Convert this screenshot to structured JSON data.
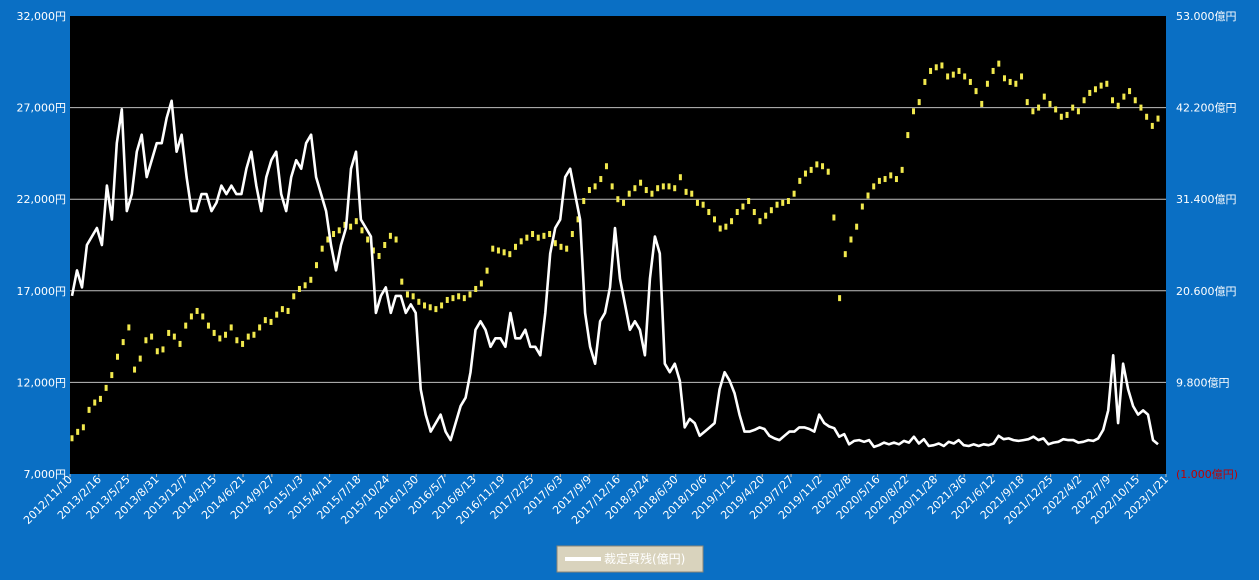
{
  "colors": {
    "background": "#0a6fc4",
    "plot_area": "#000000",
    "gridline": "#bfbfbf",
    "axis_text": "#ffffff",
    "price_series": "#f2e94e",
    "margin_series": "#ffffff",
    "negative_label": "#c00000",
    "legend_bg": "#d9d3bd"
  },
  "chart_data": {
    "type": "line",
    "grid": true,
    "legend_position": "bottom-center",
    "x_tick_labels": [
      "2012/11/10",
      "2013/2/16",
      "2013/5/25",
      "2013/8/31",
      "2013/12/7",
      "2014/3/15",
      "2014/6/21",
      "2014/9/27",
      "2015/1/3",
      "2015/4/11",
      "2015/7/18",
      "2015/10/24",
      "2016/1/30",
      "2016/5/7",
      "2016/8/13",
      "2016/11/19",
      "2017/2/25",
      "2017/6/3",
      "2017/9/9",
      "2017/12/16",
      "2018/3/24",
      "2018/6/30",
      "2018/10/6",
      "2019/1/12",
      "2019/4/20",
      "2019/7/27",
      "2019/11/2",
      "2020/2/8",
      "2020/5/16",
      "2020/8/22",
      "2020/11/28",
      "2021/3/6",
      "2021/6/12",
      "2021/9/18",
      "2021/12/25",
      "2022/4/2",
      "2022/7/9",
      "2022/10/15",
      "2023/1/21"
    ],
    "y_left": {
      "min": 7000,
      "max": 32000,
      "step": 5000,
      "tick_labels": [
        "32,000円",
        "27,000円",
        "22,000円",
        "17,000円",
        "12,000円",
        "7,000円"
      ]
    },
    "y_right": {
      "min": -1000,
      "max": 53000,
      "step": 10800,
      "tick_labels": [
        "53.000億円",
        "42.200億円",
        "31.400億円",
        "20.600億円",
        "9.800億円",
        "(1.000億円)"
      ]
    },
    "series": [
      {
        "name": "",
        "axis": "left",
        "style": "dots",
        "values": [
          8950,
          9300,
          9550,
          10500,
          10900,
          11100,
          11700,
          12400,
          13400,
          14200,
          15000,
          12700,
          13300,
          14300,
          14500,
          13700,
          13800,
          14700,
          14500,
          14100,
          15100,
          15600,
          15900,
          15600,
          15100,
          14700,
          14400,
          14600,
          15000,
          14300,
          14100,
          14500,
          14600,
          15000,
          15400,
          15300,
          15700,
          16000,
          15900,
          16700,
          17100,
          17300,
          17600,
          18400,
          19300,
          19800,
          20100,
          20300,
          20600,
          20500,
          20800,
          20300,
          19800,
          19200,
          18900,
          19500,
          20000,
          19800,
          17500,
          16800,
          16700,
          16400,
          16200,
          16100,
          16000,
          16200,
          16500,
          16600,
          16700,
          16600,
          16800,
          17100,
          17400,
          18100,
          19300,
          19200,
          19100,
          19000,
          19400,
          19700,
          19900,
          20100,
          19900,
          20000,
          20100,
          19600,
          19400,
          19300,
          20100,
          20900,
          21900,
          22500,
          22700,
          23100,
          23800,
          22700,
          22000,
          21800,
          22300,
          22600,
          22900,
          22500,
          22300,
          22600,
          22700,
          22700,
          22600,
          23200,
          22400,
          22300,
          21800,
          21700,
          21300,
          20900,
          20400,
          20500,
          20800,
          21300,
          21600,
          21900,
          21300,
          20800,
          21100,
          21400,
          21700,
          21800,
          21900,
          22300,
          23000,
          23400,
          23600,
          23900,
          23800,
          23500,
          21000,
          16600,
          19000,
          19800,
          20500,
          21600,
          22200,
          22700,
          23000,
          23100,
          23300,
          23100,
          23600,
          25500,
          26800,
          27300,
          28400,
          29000,
          29200,
          29300,
          28700,
          28800,
          29000,
          28700,
          28400,
          27900,
          27200,
          28300,
          29000,
          29400,
          28600,
          28400,
          28300,
          28700,
          27300,
          26800,
          27000,
          27600,
          27200,
          26900,
          26500,
          26600,
          27000,
          26800,
          27400,
          27800,
          28000,
          28200,
          28300,
          27400,
          27100,
          27600,
          27900,
          27400,
          27000,
          26500,
          26000,
          26400
        ]
      },
      {
        "name": "裁定買残(億円)",
        "axis": "right",
        "style": "line",
        "values": [
          20000,
          23000,
          21000,
          26000,
          27000,
          28000,
          26000,
          33000,
          29000,
          38000,
          42000,
          30000,
          32000,
          37000,
          39000,
          34000,
          36000,
          38000,
          38000,
          41000,
          43000,
          37000,
          39000,
          34000,
          30000,
          30000,
          32000,
          32000,
          30000,
          31000,
          33000,
          32000,
          33000,
          32000,
          32000,
          35000,
          37000,
          33000,
          30000,
          34000,
          36000,
          37000,
          32000,
          30000,
          34000,
          36000,
          35000,
          38000,
          39000,
          34000,
          32000,
          30000,
          26000,
          23000,
          26000,
          28000,
          35000,
          37000,
          29000,
          28000,
          27000,
          18000,
          20000,
          21000,
          18000,
          20000,
          20000,
          18000,
          19000,
          18000,
          9000,
          6000,
          4000,
          5000,
          6000,
          4000,
          3000,
          5000,
          7000,
          8000,
          11000,
          16000,
          17000,
          16000,
          14000,
          15000,
          15000,
          14000,
          18000,
          15000,
          15000,
          16000,
          14000,
          14000,
          13000,
          18000,
          25000,
          28000,
          29000,
          34000,
          35000,
          32000,
          29000,
          18000,
          14000,
          12000,
          17000,
          18000,
          21000,
          28000,
          22000,
          19000,
          16000,
          17000,
          16000,
          13000,
          22000,
          27000,
          25000,
          12000,
          11000,
          12000,
          10000,
          4500,
          5500,
          5000,
          3500,
          4000,
          4500,
          5000,
          9000,
          11000,
          10000,
          8500,
          6000,
          4000,
          4000,
          4200,
          4500,
          4300,
          3500,
          3200,
          3000,
          3500,
          4000,
          4000,
          4500,
          4500,
          4300,
          4000,
          6000,
          5000,
          4600,
          4400,
          3400,
          3700,
          2500,
          2900,
          3000,
          2800,
          3000,
          2200,
          2400,
          2700,
          2500,
          2700,
          2500,
          2900,
          2700,
          3400,
          2600,
          3100,
          2300,
          2400,
          2600,
          2300,
          2800,
          2600,
          3000,
          2400,
          2300,
          2500,
          2300,
          2500,
          2400,
          2600,
          3500,
          3100,
          3200,
          3000,
          2900,
          3000,
          3100,
          3400,
          3000,
          3200,
          2500,
          2700,
          2800,
          3100,
          3000,
          3000,
          2700,
          2800,
          3000,
          2900,
          3200,
          4200,
          6500,
          13000,
          5000,
          12000,
          9000,
          7000,
          6000,
          6500,
          6000,
          3000,
          2500
        ]
      }
    ]
  },
  "legend": {
    "label": "裁定買残(億円)"
  }
}
